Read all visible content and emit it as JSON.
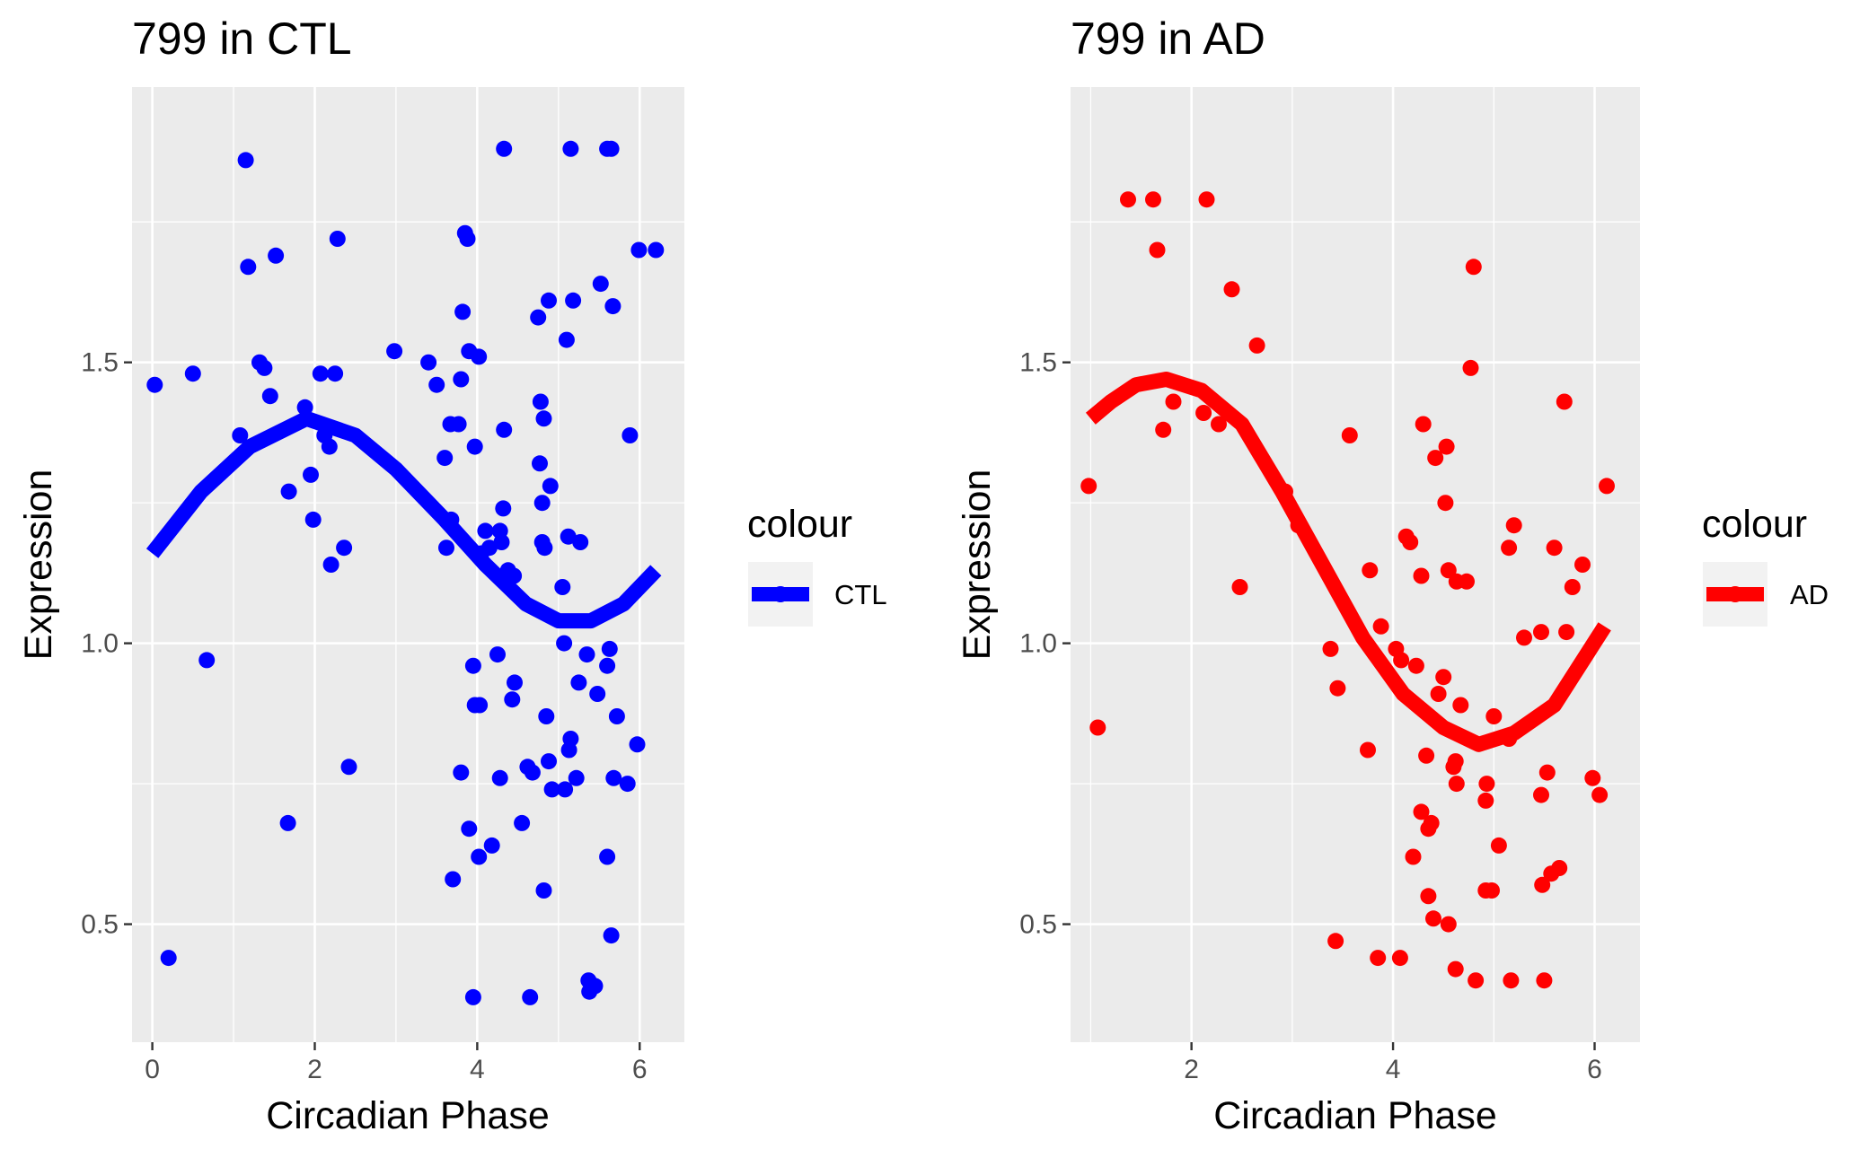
{
  "chart_data": [
    {
      "type": "scatter",
      "title": "799 in CTL",
      "xlabel": "Circadian Phase",
      "ylabel": "Expression",
      "xlim": [
        -0.25,
        6.55
      ],
      "ylim": [
        0.29,
        1.99
      ],
      "x_ticks": [
        0,
        2,
        4,
        6
      ],
      "x_tick_labels": [
        "0",
        "2",
        "4",
        "6"
      ],
      "y_ticks": [
        0.5,
        1.0,
        1.5
      ],
      "y_tick_labels": [
        "0.5",
        "1.0",
        "1.5"
      ],
      "grid": true,
      "legend": {
        "title": "colour",
        "label": "CTL",
        "position": "right"
      },
      "color": "#0000ff",
      "series": [
        {
          "name": "CTL",
          "points": [
            [
              0.03,
              1.46
            ],
            [
              0.5,
              1.48
            ],
            [
              0.2,
              0.44
            ],
            [
              0.67,
              0.97
            ],
            [
              1.08,
              1.37
            ],
            [
              1.15,
              1.86
            ],
            [
              1.18,
              1.67
            ],
            [
              1.32,
              1.5
            ],
            [
              1.38,
              1.49
            ],
            [
              1.45,
              1.44
            ],
            [
              1.52,
              1.69
            ],
            [
              1.67,
              0.68
            ],
            [
              1.68,
              1.27
            ],
            [
              1.88,
              1.42
            ],
            [
              1.95,
              1.3
            ],
            [
              1.98,
              1.22
            ],
            [
              2.07,
              1.48
            ],
            [
              2.12,
              1.37
            ],
            [
              2.18,
              1.35
            ],
            [
              2.2,
              1.14
            ],
            [
              2.25,
              1.48
            ],
            [
              2.28,
              1.72
            ],
            [
              2.36,
              1.17
            ],
            [
              2.42,
              0.78
            ],
            [
              2.98,
              1.52
            ],
            [
              3.4,
              1.5
            ],
            [
              3.5,
              1.46
            ],
            [
              3.6,
              1.33
            ],
            [
              3.62,
              1.17
            ],
            [
              3.67,
              1.39
            ],
            [
              3.68,
              1.22
            ],
            [
              3.7,
              0.58
            ],
            [
              3.77,
              1.39
            ],
            [
              3.8,
              1.47
            ],
            [
              3.82,
              1.59
            ],
            [
              3.8,
              0.77
            ],
            [
              3.85,
              1.73
            ],
            [
              3.88,
              1.72
            ],
            [
              3.9,
              1.52
            ],
            [
              3.9,
              0.67
            ],
            [
              3.95,
              0.96
            ],
            [
              3.97,
              1.35
            ],
            [
              3.95,
              0.37
            ],
            [
              3.97,
              0.89
            ],
            [
              4.02,
              1.51
            ],
            [
              4.03,
              0.89
            ],
            [
              4.05,
              1.16
            ],
            [
              4.02,
              0.62
            ],
            [
              4.1,
              1.2
            ],
            [
              4.15,
              1.17
            ],
            [
              4.18,
              0.64
            ],
            [
              4.25,
              0.98
            ],
            [
              4.28,
              1.2
            ],
            [
              4.28,
              0.76
            ],
            [
              4.3,
              1.18
            ],
            [
              4.32,
              1.24
            ],
            [
              4.33,
              1.88
            ],
            [
              4.33,
              1.38
            ],
            [
              4.38,
              1.13
            ],
            [
              4.43,
              0.9
            ],
            [
              4.45,
              1.12
            ],
            [
              4.46,
              0.93
            ],
            [
              4.55,
              0.68
            ],
            [
              4.62,
              0.78
            ],
            [
              4.65,
              0.37
            ],
            [
              4.68,
              0.77
            ],
            [
              4.75,
              1.58
            ],
            [
              4.77,
              1.32
            ],
            [
              4.78,
              1.43
            ],
            [
              4.8,
              1.25
            ],
            [
              4.8,
              1.18
            ],
            [
              4.82,
              1.4
            ],
            [
              4.83,
              1.17
            ],
            [
              4.82,
              0.56
            ],
            [
              4.85,
              0.87
            ],
            [
              4.88,
              1.61
            ],
            [
              4.88,
              0.79
            ],
            [
              4.9,
              1.28
            ],
            [
              4.92,
              0.74
            ],
            [
              5.05,
              1.1
            ],
            [
              5.07,
              1.0
            ],
            [
              5.08,
              0.74
            ],
            [
              5.1,
              1.54
            ],
            [
              5.12,
              1.19
            ],
            [
              5.13,
              0.81
            ],
            [
              5.15,
              0.83
            ],
            [
              5.15,
              1.88
            ],
            [
              5.18,
              1.61
            ],
            [
              5.22,
              0.76
            ],
            [
              5.25,
              0.93
            ],
            [
              5.27,
              1.18
            ],
            [
              5.35,
              0.98
            ],
            [
              5.37,
              0.4
            ],
            [
              5.38,
              0.38
            ],
            [
              5.45,
              0.39
            ],
            [
              5.48,
              0.91
            ],
            [
              5.52,
              1.64
            ],
            [
              5.6,
              0.62
            ],
            [
              5.6,
              0.96
            ],
            [
              5.6,
              1.88
            ],
            [
              5.63,
              0.99
            ],
            [
              5.65,
              1.88
            ],
            [
              5.65,
              0.48
            ],
            [
              5.67,
              1.6
            ],
            [
              5.68,
              0.76
            ],
            [
              5.72,
              0.87
            ],
            [
              5.85,
              0.75
            ],
            [
              5.88,
              1.37
            ],
            [
              5.97,
              0.82
            ],
            [
              5.99,
              1.7
            ],
            [
              6.2,
              1.7
            ]
          ],
          "fit": [
            [
              0.0,
              1.16
            ],
            [
              0.6,
              1.27
            ],
            [
              1.2,
              1.35
            ],
            [
              1.9,
              1.4
            ],
            [
              2.5,
              1.37
            ],
            [
              3.0,
              1.31
            ],
            [
              3.6,
              1.22
            ],
            [
              4.1,
              1.14
            ],
            [
              4.6,
              1.07
            ],
            [
              5.0,
              1.04
            ],
            [
              5.4,
              1.04
            ],
            [
              5.8,
              1.07
            ],
            [
              6.2,
              1.13
            ]
          ]
        }
      ]
    },
    {
      "type": "scatter",
      "title": "799 in AD",
      "xlabel": "Circadian Phase",
      "ylabel": "Expression",
      "xlim": [
        0.8,
        6.45
      ],
      "ylim": [
        0.29,
        1.99
      ],
      "x_ticks": [
        2,
        4,
        6
      ],
      "x_tick_labels": [
        "2",
        "4",
        "6"
      ],
      "y_ticks": [
        0.5,
        1.0,
        1.5
      ],
      "y_tick_labels": [
        "0.5",
        "1.0",
        "1.5"
      ],
      "grid": true,
      "legend": {
        "title": "colour",
        "label": "AD",
        "position": "right"
      },
      "color": "#ff0000",
      "series": [
        {
          "name": "AD",
          "points": [
            [
              0.98,
              1.28
            ],
            [
              1.07,
              0.85
            ],
            [
              1.37,
              1.79
            ],
            [
              1.62,
              1.79
            ],
            [
              1.66,
              1.7
            ],
            [
              1.72,
              1.38
            ],
            [
              1.82,
              1.43
            ],
            [
              2.15,
              1.79
            ],
            [
              2.12,
              1.41
            ],
            [
              2.27,
              1.39
            ],
            [
              2.4,
              1.63
            ],
            [
              2.48,
              1.1
            ],
            [
              2.65,
              1.53
            ],
            [
              2.93,
              1.27
            ],
            [
              3.06,
              1.21
            ],
            [
              3.38,
              0.99
            ],
            [
              3.43,
              0.47
            ],
            [
              3.45,
              0.92
            ],
            [
              3.57,
              1.37
            ],
            [
              3.75,
              0.81
            ],
            [
              3.77,
              1.13
            ],
            [
              3.85,
              0.44
            ],
            [
              3.88,
              1.03
            ],
            [
              4.03,
              0.99
            ],
            [
              4.07,
              0.44
            ],
            [
              4.08,
              0.97
            ],
            [
              4.13,
              1.19
            ],
            [
              4.17,
              1.18
            ],
            [
              4.2,
              0.62
            ],
            [
              4.23,
              0.96
            ],
            [
              4.28,
              1.12
            ],
            [
              4.28,
              0.7
            ],
            [
              4.3,
              1.39
            ],
            [
              4.33,
              0.8
            ],
            [
              4.35,
              0.67
            ],
            [
              4.35,
              0.55
            ],
            [
              4.38,
              0.68
            ],
            [
              4.4,
              0.51
            ],
            [
              4.42,
              1.33
            ],
            [
              4.45,
              0.91
            ],
            [
              4.5,
              0.94
            ],
            [
              4.53,
              1.35
            ],
            [
              4.52,
              1.25
            ],
            [
              4.55,
              1.13
            ],
            [
              4.55,
              0.5
            ],
            [
              4.6,
              0.78
            ],
            [
              4.62,
              0.79
            ],
            [
              4.63,
              0.75
            ],
            [
              4.62,
              0.42
            ],
            [
              4.63,
              1.11
            ],
            [
              4.67,
              0.89
            ],
            [
              4.73,
              1.11
            ],
            [
              4.77,
              1.49
            ],
            [
              4.8,
              1.67
            ],
            [
              4.82,
              0.4
            ],
            [
              4.93,
              0.75
            ],
            [
              4.92,
              0.72
            ],
            [
              4.92,
              0.56
            ],
            [
              4.98,
              0.56
            ],
            [
              5.0,
              0.87
            ],
            [
              5.05,
              0.64
            ],
            [
              5.15,
              0.83
            ],
            [
              5.15,
              1.17
            ],
            [
              5.17,
              0.4
            ],
            [
              5.2,
              1.21
            ],
            [
              5.3,
              1.01
            ],
            [
              5.47,
              1.02
            ],
            [
              5.47,
              0.73
            ],
            [
              5.48,
              0.57
            ],
            [
              5.5,
              0.4
            ],
            [
              5.53,
              0.77
            ],
            [
              5.57,
              0.59
            ],
            [
              5.6,
              1.17
            ],
            [
              5.65,
              0.6
            ],
            [
              5.7,
              1.43
            ],
            [
              5.72,
              1.02
            ],
            [
              5.78,
              1.1
            ],
            [
              5.88,
              1.14
            ],
            [
              5.98,
              0.76
            ],
            [
              6.05,
              0.73
            ],
            [
              6.12,
              1.28
            ]
          ],
          "fit": [
            [
              1.0,
              1.4
            ],
            [
              1.2,
              1.43
            ],
            [
              1.45,
              1.46
            ],
            [
              1.75,
              1.47
            ],
            [
              2.1,
              1.45
            ],
            [
              2.5,
              1.39
            ],
            [
              2.9,
              1.27
            ],
            [
              3.3,
              1.14
            ],
            [
              3.7,
              1.01
            ],
            [
              4.1,
              0.91
            ],
            [
              4.5,
              0.85
            ],
            [
              4.85,
              0.82
            ],
            [
              5.2,
              0.84
            ],
            [
              5.6,
              0.89
            ],
            [
              6.1,
              1.03
            ]
          ]
        }
      ]
    }
  ]
}
